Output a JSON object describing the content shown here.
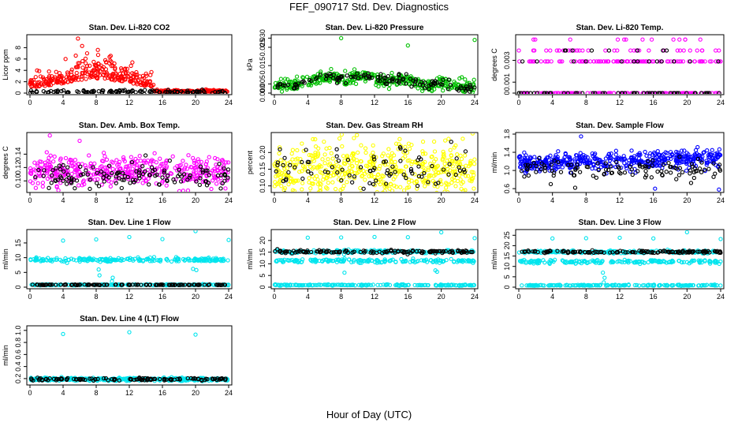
{
  "figure": {
    "title": "FEF_090717  Std. Dev. Diagnostics",
    "xlabel": "Hour of Day (UTC)"
  },
  "chart_data": [
    {
      "type": "scatter",
      "title": "Stan. Dev. Li-820 CO2",
      "ylabel": "Licor ppm",
      "xlim": [
        0,
        24
      ],
      "xticks": [
        0,
        4,
        8,
        12,
        16,
        20,
        24
      ],
      "ylim": [
        0,
        10
      ],
      "yticks": [
        0,
        2,
        4,
        6,
        8
      ],
      "x_range": [
        0,
        24
      ],
      "series": [
        {
          "color": "#ff0000",
          "mean": 0.9,
          "spread": 0.9,
          "n": 420,
          "hump": {
            "center": 8,
            "width": 5,
            "amp": 1.6
          },
          "bump_end": 15,
          "after_mean": 0.25,
          "after_spread": 0.15,
          "outliers": [
            [
              5.8,
              9.6
            ],
            [
              6.3,
              8.3
            ],
            [
              4.3,
              6.0
            ],
            [
              8.2,
              7.6
            ],
            [
              10.2,
              5.2
            ],
            [
              12.2,
              4.8
            ],
            [
              2.3,
              3.8
            ],
            [
              6.9,
              7.0
            ],
            [
              7.7,
              5.5
            ],
            [
              9.1,
              5.8
            ],
            [
              11.5,
              4.3
            ]
          ]
        },
        {
          "color": "#000000",
          "mean": 0.2,
          "spread": 0.15,
          "n": 120
        }
      ]
    },
    {
      "type": "scatter",
      "title": "Stan. Dev. Li-820 Pressure",
      "ylabel": "kPa",
      "xlim": [
        0,
        24
      ],
      "xticks": [
        0,
        4,
        8,
        12,
        16,
        20,
        24
      ],
      "ylim": [
        0,
        0.031
      ],
      "yticks": [
        0.0,
        0.005,
        0.015,
        0.025,
        0.03
      ],
      "x_range": [
        0,
        24
      ],
      "series": [
        {
          "color": "#00c000",
          "mean": 0.006,
          "spread": 0.003,
          "n": 380,
          "wave": {
            "type": "pressure"
          },
          "outliers": [
            [
              8,
              0.03
            ],
            [
              16,
              0.026
            ],
            [
              24,
              0.029
            ]
          ]
        },
        {
          "color": "#000000",
          "mean": 0.006,
          "spread": 0.002,
          "n": 120,
          "wave": {
            "type": "pressure"
          }
        }
      ]
    },
    {
      "type": "scatter",
      "title": "Stan. Dev. Li-820 Temp.",
      "ylabel": "degrees C",
      "xlim": [
        0,
        24
      ],
      "xticks": [
        0,
        4,
        8,
        12,
        16,
        20,
        24
      ],
      "ylim": [
        0,
        0.0052
      ],
      "yticks": [
        0,
        0.001,
        0.003
      ],
      "x_range": [
        0,
        24
      ],
      "series": [
        {
          "color": "#ff00ff",
          "levels": [
            0,
            0.0029,
            0.0039,
            0.0049
          ],
          "n": 300,
          "level_weights": [
            0.5,
            0.35,
            0.1,
            0.05
          ]
        },
        {
          "color": "#000000",
          "levels": [
            0,
            0.0029,
            0.0039
          ],
          "n": 80,
          "level_weights": [
            0.7,
            0.2,
            0.1
          ]
        }
      ]
    },
    {
      "type": "scatter",
      "title": "Stan. Dev. Amb. Box Temp.",
      "ylabel": "degrees C",
      "xlim": [
        0,
        24
      ],
      "xticks": [
        0,
        4,
        8,
        12,
        16,
        20,
        24
      ],
      "ylim": [
        0.085,
        0.17
      ],
      "yticks": [
        0.1,
        0.12,
        0.14
      ],
      "x_range": [
        0,
        24
      ],
      "series": [
        {
          "color": "#ff00ff",
          "mean": 0.115,
          "spread": 0.011,
          "n": 420,
          "outliers": [
            [
              2.4,
              0.168
            ],
            [
              6.0,
              0.16
            ]
          ]
        },
        {
          "color": "#000000",
          "mean": 0.108,
          "spread": 0.009,
          "n": 130
        }
      ]
    },
    {
      "type": "scatter",
      "title": "Stan. Dev. Gas Stream RH",
      "ylabel": "percent",
      "xlim": [
        0,
        24
      ],
      "xticks": [
        0,
        4,
        8,
        12,
        16,
        20,
        24
      ],
      "ylim": [
        0.085,
        0.255
      ],
      "yticks": [
        0.1,
        0.15,
        0.2
      ],
      "x_range": [
        0,
        24
      ],
      "series": [
        {
          "color": "#ffff00",
          "mean": 0.145,
          "spread": 0.04,
          "n": 520
        },
        {
          "color": "#000000",
          "mean": 0.14,
          "spread": 0.035,
          "n": 90
        }
      ]
    },
    {
      "type": "scatter",
      "title": "Stan. Dev. Sample Flow",
      "ylabel": "ml/min",
      "xlim": [
        0,
        24
      ],
      "xticks": [
        0,
        4,
        8,
        12,
        16,
        20,
        24
      ],
      "ylim": [
        0.55,
        1.8
      ],
      "yticks": [
        0.6,
        1.0,
        1.4,
        1.8
      ],
      "x_range": [
        0,
        24
      ],
      "series": [
        {
          "color": "#0000ff",
          "mean": 1.22,
          "spread": 0.1,
          "n": 460,
          "trend": 0.006,
          "outliers": [
            [
              7.4,
              1.75
            ],
            [
              16.2,
              0.6
            ],
            [
              23.8,
              0.58
            ],
            [
              0.8,
              0.95
            ]
          ]
        },
        {
          "color": "#000000",
          "mean": 1.02,
          "spread": 0.12,
          "n": 110,
          "outliers": [
            [
              6.7,
              0.62
            ],
            [
              3.8,
              0.7
            ]
          ]
        }
      ]
    },
    {
      "type": "scatter",
      "title": "Stan. Dev. Line 1 Flow",
      "ylabel": "ml/min",
      "xlim": [
        0,
        24
      ],
      "xticks": [
        0,
        4,
        8,
        12,
        16,
        20,
        24
      ],
      "ylim": [
        0,
        19
      ],
      "yticks": [
        0,
        5,
        10,
        15
      ],
      "x_range": [
        0,
        24
      ],
      "series": [
        {
          "color": "#00e5ee",
          "bands": [
            {
              "y": 9.3,
              "s": 0.35
            },
            {
              "y": 0.8,
              "s": 0.08
            }
          ],
          "n": 400,
          "outliers": [
            [
              4,
              15.8
            ],
            [
              8,
              16.2
            ],
            [
              12,
              17.0
            ],
            [
              16,
              16.3
            ],
            [
              20,
              19.0
            ],
            [
              24,
              16.0
            ],
            [
              8.3,
              6.0
            ],
            [
              8.4,
              4.0
            ],
            [
              9.9,
              2.0
            ],
            [
              10,
              3.2
            ],
            [
              19.7,
              6.2
            ],
            [
              20.1,
              5.8
            ]
          ]
        },
        {
          "color": "#000000",
          "bands": [
            {
              "y": 0.8,
              "s": 0.05
            }
          ],
          "n": 120
        }
      ]
    },
    {
      "type": "scatter",
      "title": "Stan. Dev. Line 2 Flow",
      "ylabel": "ml/min",
      "xlim": [
        0,
        24
      ],
      "xticks": [
        0,
        4,
        8,
        12,
        16,
        20,
        24
      ],
      "ylim": [
        0,
        24
      ],
      "yticks": [
        0,
        5,
        10,
        15,
        20
      ],
      "x_range": [
        0,
        24
      ],
      "series": [
        {
          "color": "#00e5ee",
          "bands": [
            {
              "y": 15.2,
              "s": 0.35
            },
            {
              "y": 11.3,
              "s": 0.4
            },
            {
              "y": 0.9,
              "s": 0.12
            }
          ],
          "n": 520,
          "outliers": [
            [
              4,
              21.2
            ],
            [
              8,
              21.3
            ],
            [
              12,
              21.5
            ],
            [
              16,
              21.4
            ],
            [
              20,
              23.5
            ],
            [
              24,
              21.0
            ],
            [
              8.4,
              6.2
            ],
            [
              19.3,
              7.2
            ],
            [
              19.5,
              6.6
            ]
          ]
        },
        {
          "color": "#000000",
          "bands": [
            {
              "y": 15.2,
              "s": 0.3
            }
          ],
          "n": 130
        }
      ]
    },
    {
      "type": "scatter",
      "title": "Stan. Dev. Line 3 Flow",
      "ylabel": "ml/min",
      "xlim": [
        0,
        24
      ],
      "xticks": [
        0,
        4,
        8,
        12,
        16,
        20,
        24
      ],
      "ylim": [
        0,
        27
      ],
      "yticks": [
        0,
        5,
        10,
        15,
        20,
        25
      ],
      "x_range": [
        0,
        24
      ],
      "series": [
        {
          "color": "#00e5ee",
          "bands": [
            {
              "y": 17.0,
              "s": 0.35
            },
            {
              "y": 12.3,
              "s": 0.4
            },
            {
              "y": 0.9,
              "s": 0.12
            }
          ],
          "n": 520,
          "outliers": [
            [
              4,
              23.5
            ],
            [
              8,
              23.6
            ],
            [
              12,
              23.8
            ],
            [
              16,
              23.5
            ],
            [
              20,
              26.5
            ],
            [
              24,
              23.2
            ],
            [
              10,
              7.0
            ],
            [
              10.2,
              4.5
            ],
            [
              10.1,
              2.3
            ]
          ]
        },
        {
          "color": "#000000",
          "bands": [
            {
              "y": 17.0,
              "s": 0.3
            }
          ],
          "n": 130
        }
      ]
    },
    {
      "type": "scatter",
      "title": "Stan. Dev. Line 4 (LT) Flow",
      "ylabel": "ml/min",
      "xlim": [
        0,
        24
      ],
      "xticks": [
        0,
        4,
        8,
        12,
        16,
        20,
        24
      ],
      "ylim": [
        0.12,
        1.05
      ],
      "yticks": [
        0.2,
        0.4,
        0.6,
        0.8,
        1.0
      ],
      "x_range": [
        0,
        24
      ],
      "series": [
        {
          "color": "#00e5ee",
          "bands": [
            {
              "y": 0.19,
              "s": 0.012
            }
          ],
          "n": 400,
          "outliers": [
            [
              4,
              0.94
            ],
            [
              12,
              0.97
            ],
            [
              20,
              0.93
            ]
          ]
        },
        {
          "color": "#000000",
          "bands": [
            {
              "y": 0.19,
              "s": 0.01
            }
          ],
          "n": 120
        }
      ]
    }
  ]
}
